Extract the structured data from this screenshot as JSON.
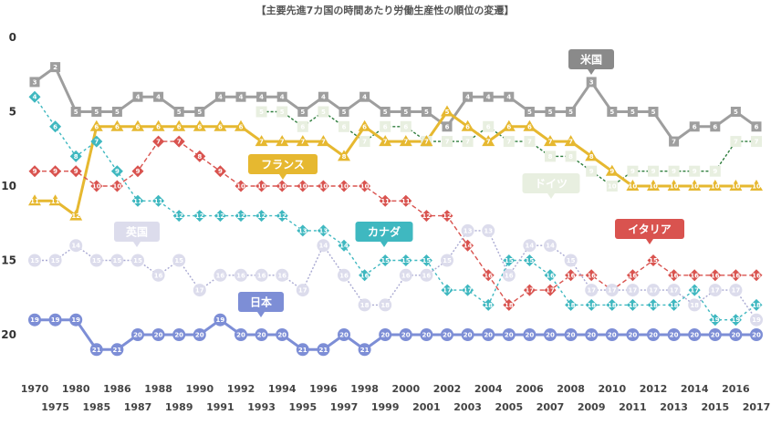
{
  "chart_data": {
    "type": "line",
    "title": "【主要先進7カ国の時間あたり労働生産性の順位の変遷】",
    "xlabel": "",
    "ylabel": "",
    "ylim": [
      0,
      22
    ],
    "y_ticks": [
      "0",
      "5",
      "10",
      "15",
      "20"
    ],
    "y_tick_values": [
      0,
      5,
      10,
      15,
      20
    ],
    "y_inverted": true,
    "grid": false,
    "x": [
      1970,
      1975,
      1980,
      1985,
      1986,
      1987,
      1988,
      1989,
      1990,
      1991,
      1992,
      1993,
      1994,
      1995,
      1996,
      1997,
      1998,
      1999,
      2000,
      2001,
      2002,
      2003,
      2004,
      2005,
      2006,
      2007,
      2008,
      2009,
      2010,
      2011,
      2012,
      2013,
      2014,
      2015,
      2016,
      2017
    ],
    "x_labels": [
      "1970",
      "1975",
      "1980",
      "1985",
      "1986",
      "1987",
      "1988",
      "1989",
      "1990",
      "1991",
      "1992",
      "1993",
      "1994",
      "1995",
      "1996",
      "1997",
      "1998",
      "1999",
      "2000",
      "2001",
      "2002",
      "2003",
      "2004",
      "2005",
      "2006",
      "2007",
      "2008",
      "2009",
      "2010",
      "2011",
      "2012",
      "2013",
      "2014",
      "2015",
      "2016",
      "2017"
    ],
    "series": [
      {
        "name": "米国",
        "color": "#9e9e9e",
        "dash": "",
        "values": [
          3,
          2,
          5,
          5,
          5,
          4,
          4,
          5,
          5,
          4,
          4,
          4,
          4,
          5,
          4,
          5,
          4,
          5,
          5,
          5,
          6,
          4,
          4,
          4,
          5,
          5,
          5,
          3,
          5,
          5,
          5,
          7,
          6,
          6,
          5,
          6
        ]
      },
      {
        "name": "ドイツ",
        "color": "#2e7d3c",
        "dash": "3,2",
        "values": [
          null,
          null,
          null,
          null,
          null,
          null,
          null,
          null,
          null,
          null,
          null,
          5,
          5,
          6,
          5,
          6,
          7,
          6,
          6,
          7,
          7,
          7,
          6,
          7,
          7,
          8,
          8,
          9,
          10,
          9,
          9,
          9,
          9,
          9,
          7,
          7
        ]
      },
      {
        "name": "フランス",
        "color": "#e6b830",
        "dash": "",
        "values": [
          11,
          11,
          12,
          6,
          6,
          6,
          6,
          6,
          6,
          6,
          6,
          7,
          7,
          7,
          7,
          8,
          6,
          7,
          7,
          7,
          5,
          6,
          7,
          6,
          6,
          7,
          7,
          8,
          9,
          10,
          10,
          10,
          10,
          10,
          10,
          10
        ]
      },
      {
        "name": "イタリア",
        "color": "#d9534f",
        "dash": "5,3",
        "values": [
          9,
          9,
          9,
          10,
          10,
          9,
          7,
          7,
          8,
          9,
          10,
          10,
          10,
          10,
          10,
          10,
          10,
          11,
          11,
          12,
          12,
          14,
          16,
          18,
          17,
          17,
          16,
          16,
          17,
          16,
          15,
          16,
          16,
          16,
          16,
          16
        ]
      },
      {
        "name": "カナダ",
        "color": "#3fb8c0",
        "dash": "3,3",
        "values": [
          4,
          6,
          8,
          7,
          9,
          11,
          11,
          12,
          12,
          12,
          12,
          12,
          12,
          13,
          13,
          14,
          16,
          15,
          15,
          15,
          17,
          17,
          18,
          15,
          15,
          16,
          18,
          18,
          18,
          18,
          18,
          18,
          17,
          19,
          19,
          18
        ]
      },
      {
        "name": "英国",
        "color": "#a9a9d2",
        "dash": "2,2",
        "values": [
          15,
          15,
          14,
          15,
          15,
          15,
          16,
          15,
          17,
          16,
          16,
          16,
          16,
          17,
          14,
          16,
          18,
          18,
          16,
          16,
          15,
          13,
          13,
          16,
          14,
          14,
          15,
          17,
          17,
          17,
          17,
          17,
          18,
          17,
          17,
          19
        ]
      },
      {
        "name": "日本",
        "color": "#7d8ed6",
        "dash": "",
        "values": [
          19,
          19,
          19,
          21,
          21,
          20,
          20,
          20,
          20,
          19,
          20,
          20,
          20,
          21,
          21,
          20,
          21,
          20,
          20,
          20,
          20,
          20,
          20,
          20,
          20,
          20,
          20,
          20,
          20,
          20,
          20,
          20,
          20,
          20,
          20,
          20
        ]
      }
    ],
    "annotations": [
      {
        "series": "米国",
        "text": "米国",
        "color": "#8a8a8a"
      },
      {
        "series": "フランス",
        "text": "フランス",
        "color": "#e6b830"
      },
      {
        "series": "ドイツ",
        "text": "ドイツ",
        "color": "#e8efe0"
      },
      {
        "series": "英国",
        "text": "英国",
        "color": "#dcdcec"
      },
      {
        "series": "カナダ",
        "text": "カナダ",
        "color": "#3fb8c0"
      },
      {
        "series": "イタリア",
        "text": "イタリア",
        "color": "#d9534f"
      },
      {
        "series": "日本",
        "text": "日本",
        "color": "#7d8ed6"
      }
    ]
  }
}
